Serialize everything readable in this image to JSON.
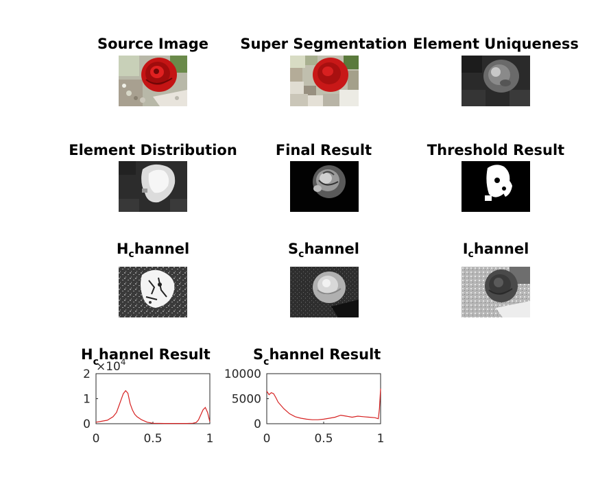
{
  "colors": {
    "curve": "#d62020",
    "axis": "#262626"
  },
  "panels": [
    {
      "title": "Source Image"
    },
    {
      "title": "Super Segmentation"
    },
    {
      "title": "Element Uniqueness"
    },
    {
      "title": "Element Distribution"
    },
    {
      "title": "Final Result"
    },
    {
      "title": "Threshold Result"
    },
    {
      "title_main": "H",
      "title_sub": "c",
      "title_rest": "hannel"
    },
    {
      "title_main": "S",
      "title_sub": "c",
      "title_rest": "hannel"
    },
    {
      "title_main": "I",
      "title_sub": "c",
      "title_rest": "hannel"
    }
  ],
  "chart_data": [
    {
      "type": "line",
      "title_main": "H",
      "title_sub": "c",
      "title_rest": "hannel Result",
      "xlim": [
        0,
        1
      ],
      "ylim": [
        0,
        20000
      ],
      "xticks": [
        "0",
        "0.5",
        "1"
      ],
      "yticks": [
        "0",
        "1",
        "2"
      ],
      "y_multiplier": "×10",
      "y_multiplier_exp": "4",
      "x": [
        0,
        0.05,
        0.1,
        0.15,
        0.18,
        0.2,
        0.22,
        0.24,
        0.26,
        0.28,
        0.3,
        0.32,
        0.34,
        0.36,
        0.4,
        0.45,
        0.5,
        0.6,
        0.7,
        0.8,
        0.85,
        0.88,
        0.9,
        0.92,
        0.94,
        0.96,
        0.98,
        1.0
      ],
      "y": [
        600,
        1000,
        1400,
        2800,
        4500,
        7000,
        9500,
        12000,
        13200,
        12200,
        8000,
        5500,
        3800,
        2800,
        1600,
        600,
        200,
        100,
        100,
        100,
        200,
        500,
        1500,
        3500,
        5500,
        6500,
        4500,
        800
      ]
    },
    {
      "type": "line",
      "title_main": "S",
      "title_sub": "c",
      "title_rest": "hannel Result",
      "xlim": [
        0,
        1
      ],
      "ylim": [
        0,
        10000
      ],
      "xticks": [
        "0",
        "0.5",
        "1"
      ],
      "yticks": [
        "0",
        "5000",
        "10000"
      ],
      "x": [
        0,
        0.02,
        0.04,
        0.06,
        0.08,
        0.1,
        0.15,
        0.2,
        0.25,
        0.3,
        0.35,
        0.4,
        0.45,
        0.5,
        0.55,
        0.6,
        0.65,
        0.7,
        0.75,
        0.8,
        0.85,
        0.9,
        0.95,
        0.98,
        0.99,
        1.0
      ],
      "y": [
        6500,
        5800,
        6200,
        6000,
        5200,
        4300,
        3000,
        2000,
        1400,
        1100,
        900,
        800,
        800,
        900,
        1100,
        1300,
        1700,
        1500,
        1300,
        1500,
        1400,
        1300,
        1200,
        1000,
        3000,
        7000
      ]
    }
  ]
}
